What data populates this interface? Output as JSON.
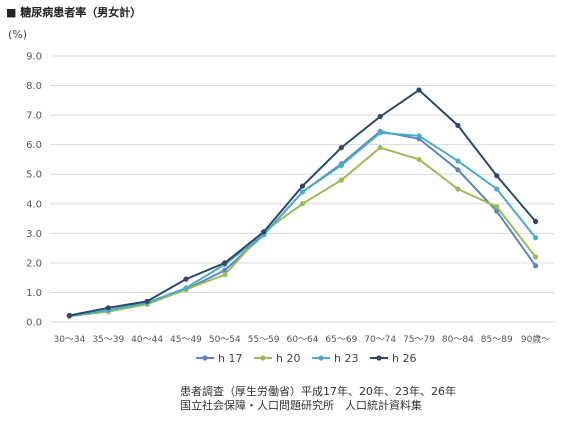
{
  "header": {
    "title": "■ 糖尿病患者率（男女計）",
    "unit": "(%)"
  },
  "source": {
    "line1": "患者調査（厚生労働省）平成17年、20年、23年、26年",
    "line2": "国立社会保障・人口問題研究所　人口統計資料集"
  },
  "colors": {
    "h17": "#5b86c4",
    "h20": "#9bbb59",
    "h23": "#4bacc6",
    "h26": "#2c4a6b",
    "grid": "#d9d9d9"
  },
  "chart_data": {
    "type": "line",
    "title": "糖尿病患者率（男女計）",
    "ylabel": "(%)",
    "xlabel": "",
    "ylim": [
      0,
      9
    ],
    "yticks": [
      "0.0",
      "1.0",
      "2.0",
      "3.0",
      "4.0",
      "5.0",
      "6.0",
      "7.0",
      "8.0",
      "9.0"
    ],
    "grid": true,
    "legend": "bottom",
    "categories": [
      "30～34",
      "35～39",
      "40～44",
      "45～49",
      "50～54",
      "55～59",
      "60～64",
      "65～69",
      "70～74",
      "75～79",
      "80～84",
      "85～89",
      "90歳～"
    ],
    "series": [
      {
        "name": "h 17",
        "key": "h17",
        "values": [
          0.2,
          0.4,
          0.65,
          1.1,
          1.75,
          2.95,
          4.4,
          5.35,
          6.45,
          6.2,
          5.15,
          3.75,
          1.9
        ]
      },
      {
        "name": "h 20",
        "key": "h20",
        "values": [
          0.2,
          0.35,
          0.6,
          1.1,
          1.6,
          3.05,
          4.0,
          4.8,
          5.9,
          5.5,
          4.5,
          3.9,
          2.2
        ]
      },
      {
        "name": "h 23",
        "key": "h23",
        "values": [
          0.2,
          0.4,
          0.65,
          1.15,
          1.95,
          2.95,
          4.4,
          5.3,
          6.4,
          6.3,
          5.45,
          4.5,
          2.85
        ]
      },
      {
        "name": "h 26",
        "key": "h26",
        "values": [
          0.22,
          0.48,
          0.7,
          1.45,
          2.0,
          3.05,
          4.6,
          5.9,
          6.95,
          7.85,
          6.65,
          4.95,
          3.4
        ]
      }
    ]
  }
}
